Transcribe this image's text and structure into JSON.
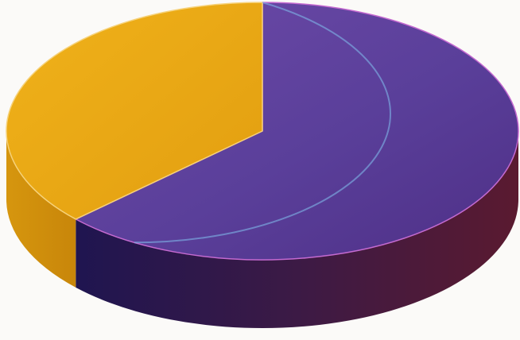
{
  "chart_data": {
    "type": "pie",
    "style": "3d",
    "title": "",
    "slices": [
      {
        "value": 63,
        "color": "#5a3f9a",
        "side_color": "#4a1b3b"
      },
      {
        "value": 37,
        "color": "#e8a716",
        "side_color": "#c98d0c"
      }
    ],
    "start_angle_deg": -90,
    "legend": "none",
    "data_labels": false
  }
}
